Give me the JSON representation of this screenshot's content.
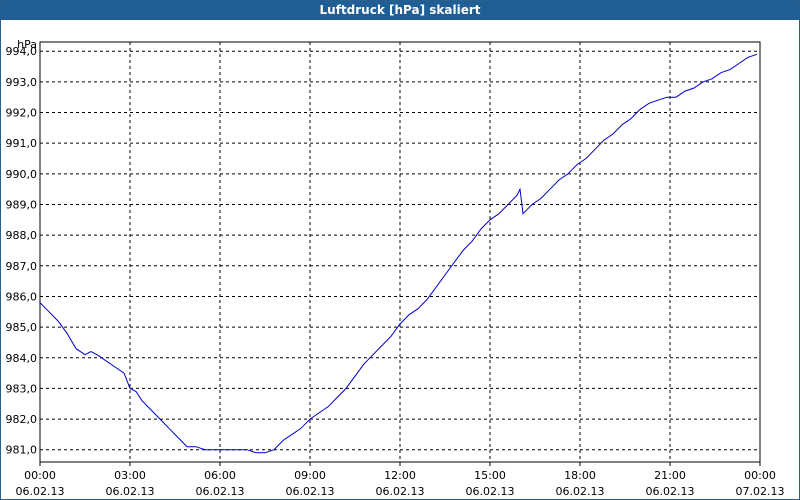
{
  "window": {
    "title": "Luftdruck [hPa] skaliert",
    "title_bar_color": "#1f5f96"
  },
  "chart_data": {
    "type": "line",
    "title": "Luftdruck [hPa] skaliert",
    "ylabel": "hPa",
    "xlabel": "",
    "grid": true,
    "line_color": "#0000cc",
    "xlim": [
      0,
      24
    ],
    "ylim": [
      980.6,
      994.3
    ],
    "x_ticks": [
      {
        "time": "00:00",
        "date": "06.02.13"
      },
      {
        "time": "03:00",
        "date": "06.02.13"
      },
      {
        "time": "06:00",
        "date": "06.02.13"
      },
      {
        "time": "09:00",
        "date": "06.02.13"
      },
      {
        "time": "12:00",
        "date": "06.02.13"
      },
      {
        "time": "15:00",
        "date": "06.02.13"
      },
      {
        "time": "18:00",
        "date": "06.02.13"
      },
      {
        "time": "21:00",
        "date": "06.02.13"
      },
      {
        "time": "00:00",
        "date": "07.02.13"
      }
    ],
    "y_ticks": [
      "994,0",
      "993,0",
      "992,0",
      "991,0",
      "990,0",
      "989,0",
      "988,0",
      "987,0",
      "986,0",
      "985,0",
      "984,0",
      "983,0",
      "982,0",
      "981,0"
    ],
    "y_tick_values": [
      994,
      993,
      992,
      991,
      990,
      989,
      988,
      987,
      986,
      985,
      984,
      983,
      982,
      981
    ],
    "series": [
      {
        "x": [
          0.0,
          0.3,
          0.6,
          0.9,
          1.2,
          1.5,
          1.7,
          1.9,
          2.2,
          2.5,
          2.8,
          3.0,
          3.2,
          3.4,
          3.7,
          4.0,
          4.3,
          4.6,
          4.9,
          5.2,
          5.5,
          5.8,
          6.0,
          6.3,
          6.6,
          6.9,
          7.2,
          7.5,
          7.8,
          8.1,
          8.4,
          8.7,
          9.0,
          9.3,
          9.6,
          9.9,
          10.2,
          10.5,
          10.8,
          11.1,
          11.4,
          11.7,
          12.0,
          12.3,
          12.6,
          12.9,
          13.2,
          13.5,
          13.8,
          14.1,
          14.4,
          14.7,
          15.0,
          15.3,
          15.6,
          15.9,
          16.0,
          16.1,
          16.4,
          16.7,
          17.0,
          17.3,
          17.6,
          17.9,
          18.2,
          18.5,
          18.8,
          19.1,
          19.4,
          19.7,
          20.0,
          20.3,
          20.6,
          20.9,
          21.2,
          21.5,
          21.8,
          22.1,
          22.4,
          22.7,
          23.0,
          23.3,
          23.6,
          23.9
        ],
        "y": [
          985.8,
          985.5,
          985.2,
          984.8,
          984.3,
          984.1,
          984.2,
          984.1,
          983.9,
          983.7,
          983.5,
          983.0,
          982.9,
          982.6,
          982.3,
          982.0,
          981.7,
          981.4,
          981.1,
          981.1,
          981.0,
          981.0,
          981.0,
          981.0,
          981.0,
          981.0,
          980.9,
          980.9,
          981.0,
          981.3,
          981.5,
          981.7,
          982.0,
          982.2,
          982.4,
          982.7,
          983.0,
          983.4,
          983.8,
          984.1,
          984.4,
          984.7,
          985.1,
          985.4,
          985.6,
          985.9,
          986.3,
          986.7,
          987.1,
          987.5,
          987.8,
          988.2,
          988.5,
          988.7,
          989.0,
          989.3,
          989.5,
          988.7,
          989.0,
          989.2,
          989.5,
          989.8,
          990.0,
          990.3,
          990.5,
          990.8,
          991.1,
          991.3,
          991.6,
          991.8,
          992.1,
          992.3,
          992.4,
          992.5,
          992.5,
          992.7,
          992.8,
          993.0,
          993.1,
          993.3,
          993.4,
          993.6,
          993.8,
          993.9
        ]
      }
    ]
  }
}
